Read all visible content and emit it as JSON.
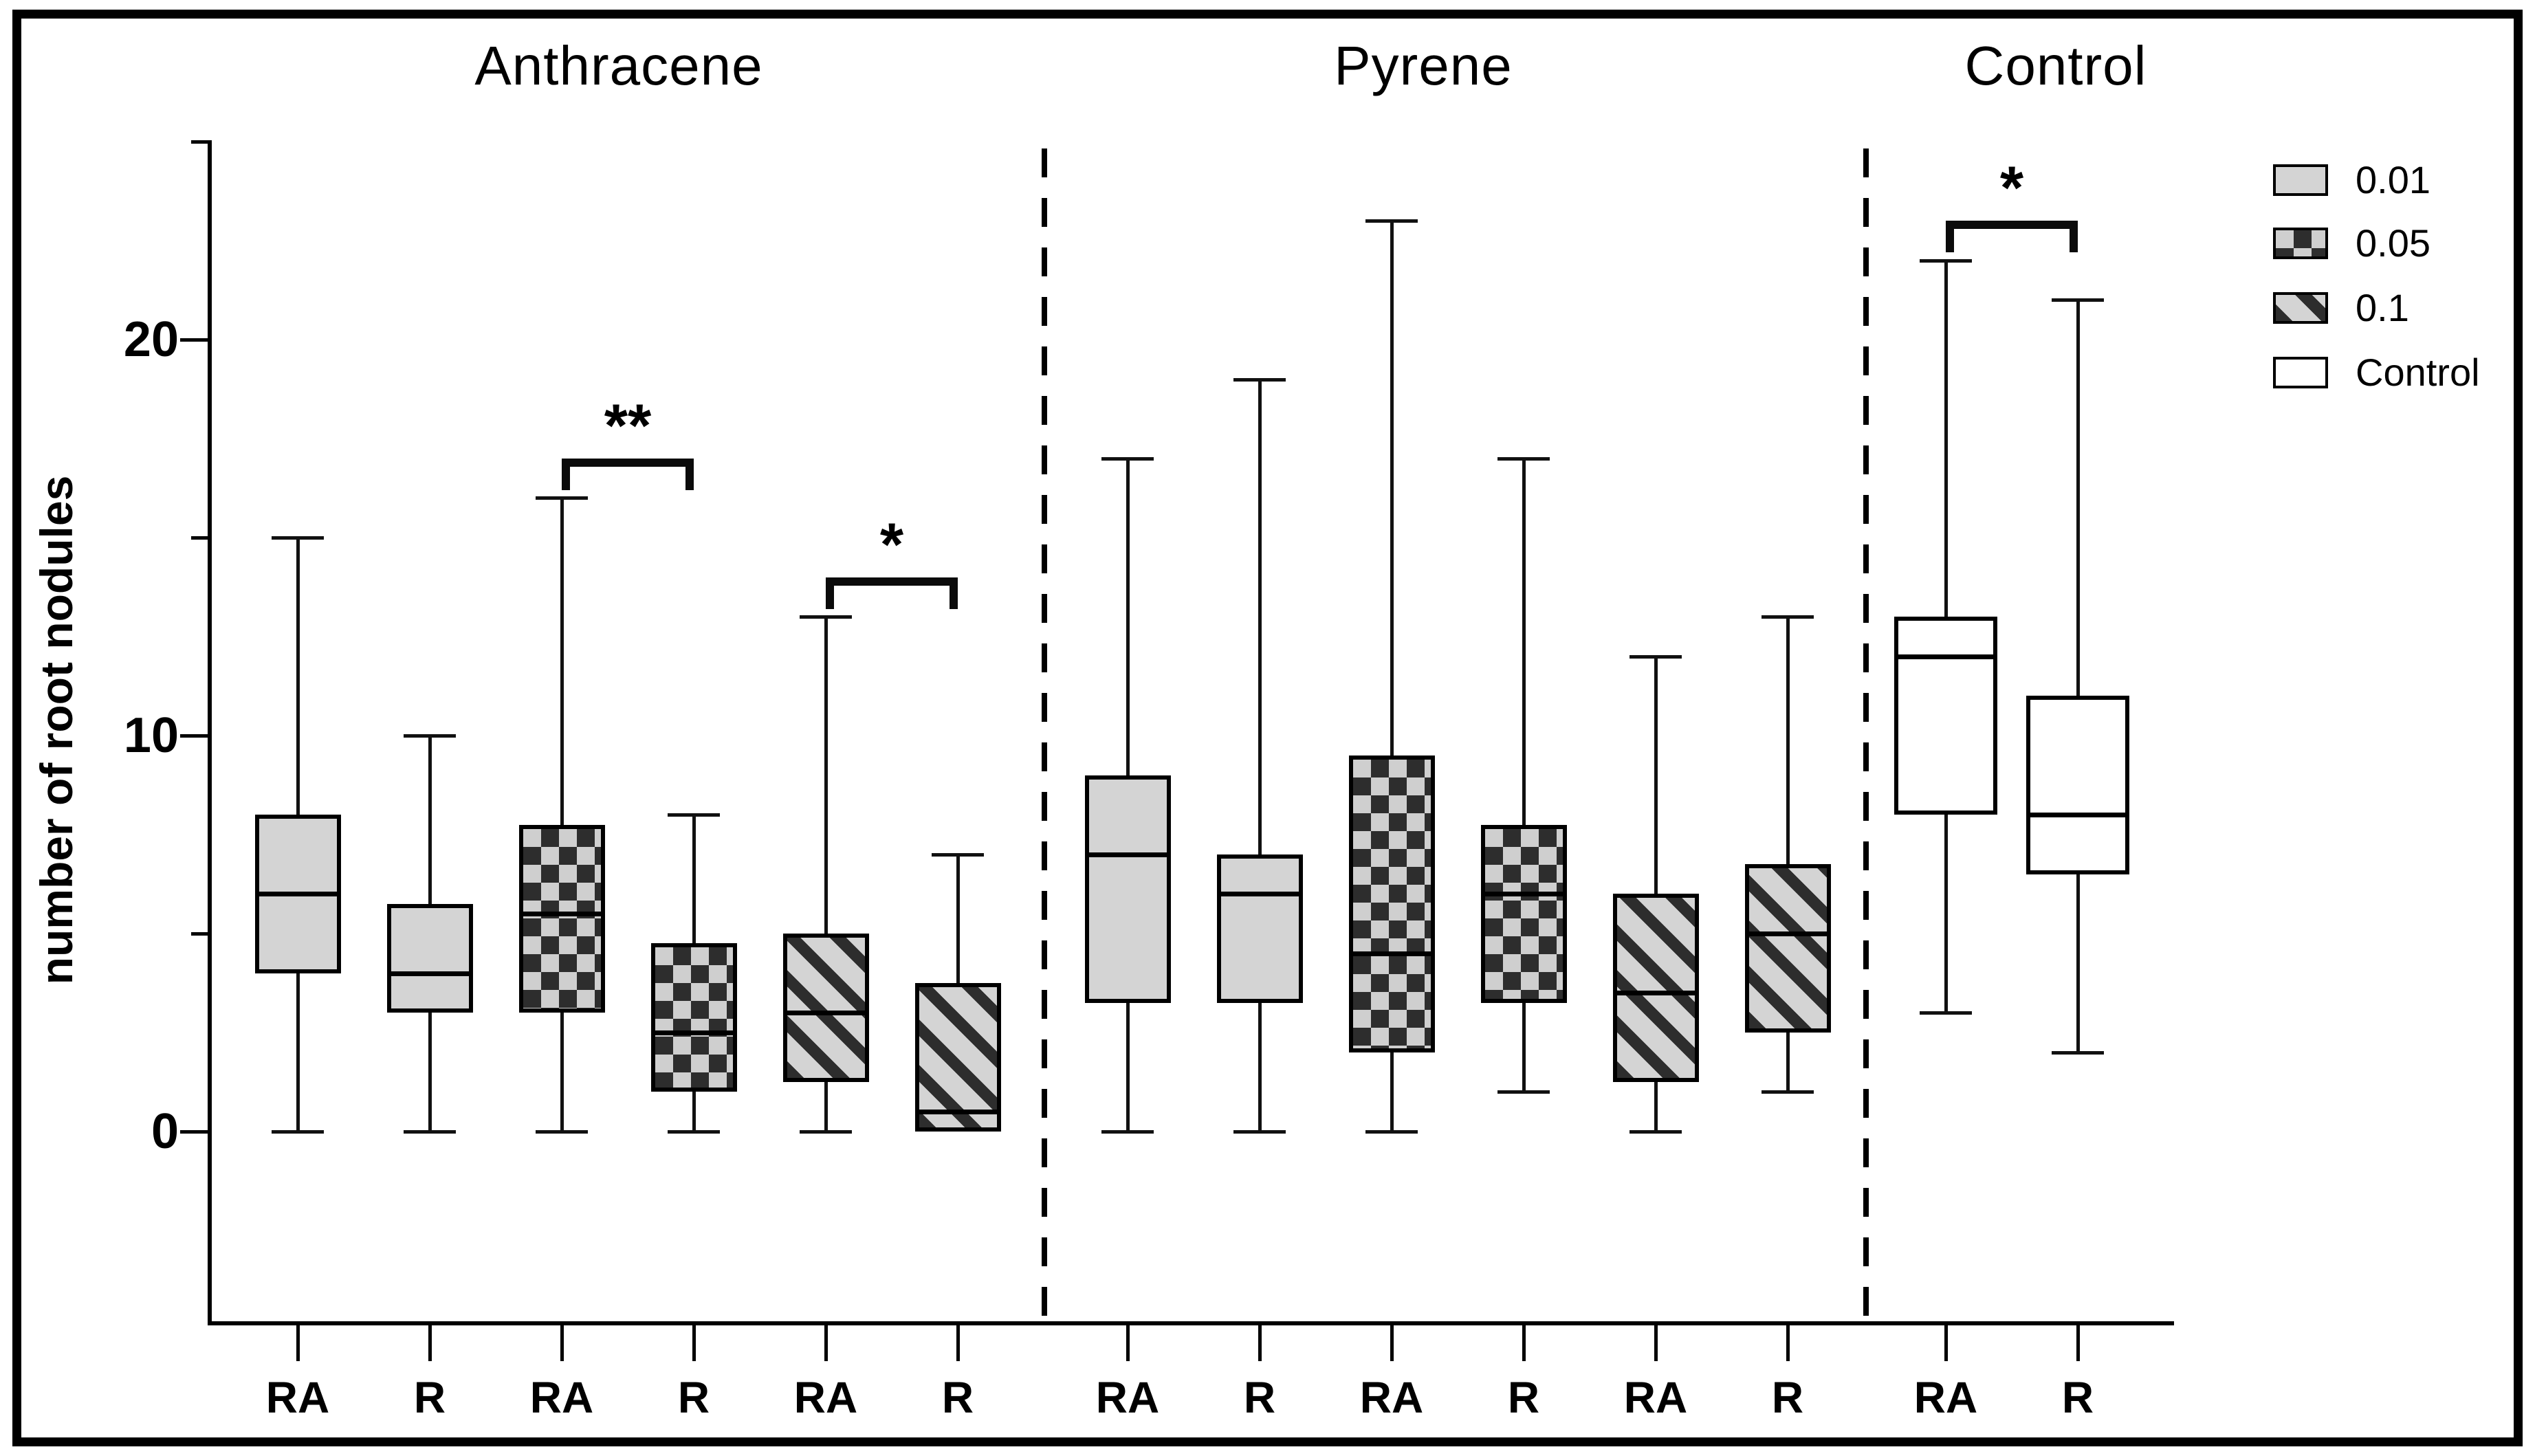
{
  "figure": {
    "ylabel": "number of root nodules"
  },
  "chart_data": {
    "type": "box",
    "title": "",
    "ylabel": "number of root nodules",
    "ylim": [
      0,
      25
    ],
    "grid": false,
    "legend_position": "top-right",
    "groups": [
      {
        "label": "Anthracene"
      },
      {
        "label": "Pyrene"
      },
      {
        "label": "Control"
      }
    ],
    "y_ticks_major": [
      {
        "value": 20,
        "label": "20"
      },
      {
        "value": 10,
        "label": "10"
      },
      {
        "value": 0,
        "label": "0"
      }
    ],
    "y_ticks_minor": [
      25,
      15,
      5
    ],
    "legend": [
      {
        "label": "0.01",
        "pattern": "gray"
      },
      {
        "label": "0.05",
        "pattern": "checker"
      },
      {
        "label": "0.1",
        "pattern": "stripe"
      },
      {
        "label": "Control",
        "pattern": "white"
      }
    ],
    "boxes": [
      {
        "group": "Anthracene",
        "concentration": "0.01",
        "treatment": "RA",
        "pattern": "gray",
        "min": 0,
        "q1": 4,
        "median": 6,
        "q3": 8,
        "max": 15
      },
      {
        "group": "Anthracene",
        "concentration": "0.01",
        "treatment": "R",
        "pattern": "gray",
        "min": 0,
        "q1": 3,
        "median": 4,
        "q3": 5.75,
        "max": 10
      },
      {
        "group": "Anthracene",
        "concentration": "0.05",
        "treatment": "RA",
        "pattern": "checker",
        "min": 0,
        "q1": 3,
        "median": 5.5,
        "q3": 7.75,
        "max": 16
      },
      {
        "group": "Anthracene",
        "concentration": "0.05",
        "treatment": "R",
        "pattern": "checker",
        "min": 0,
        "q1": 1,
        "median": 2.5,
        "q3": 4.75,
        "max": 8
      },
      {
        "group": "Anthracene",
        "concentration": "0.1",
        "treatment": "RA",
        "pattern": "stripe",
        "min": 0,
        "q1": 1.25,
        "median": 3,
        "q3": 5,
        "max": 13
      },
      {
        "group": "Anthracene",
        "concentration": "0.1",
        "treatment": "R",
        "pattern": "stripe",
        "min": 0,
        "q1": 0,
        "median": 0.5,
        "q3": 3.75,
        "max": 7
      },
      {
        "group": "Pyrene",
        "concentration": "0.01",
        "treatment": "RA",
        "pattern": "gray",
        "min": 0,
        "q1": 3.25,
        "median": 7,
        "q3": 9,
        "max": 17
      },
      {
        "group": "Pyrene",
        "concentration": "0.01",
        "treatment": "R",
        "pattern": "gray",
        "min": 0,
        "q1": 3.25,
        "median": 6,
        "q3": 7,
        "max": 19
      },
      {
        "group": "Pyrene",
        "concentration": "0.05",
        "treatment": "RA",
        "pattern": "checker",
        "min": 0,
        "q1": 2,
        "median": 4.5,
        "q3": 9.5,
        "max": 23
      },
      {
        "group": "Pyrene",
        "concentration": "0.05",
        "treatment": "R",
        "pattern": "checker",
        "min": 1,
        "q1": 3.25,
        "median": 6,
        "q3": 7.75,
        "max": 17
      },
      {
        "group": "Pyrene",
        "concentration": "0.1",
        "treatment": "RA",
        "pattern": "stripe",
        "min": 0,
        "q1": 1.25,
        "median": 3.5,
        "q3": 6,
        "max": 12
      },
      {
        "group": "Pyrene",
        "concentration": "0.1",
        "treatment": "R",
        "pattern": "stripe",
        "min": 1,
        "q1": 2.5,
        "median": 5,
        "q3": 6.75,
        "max": 13
      },
      {
        "group": "Control",
        "concentration": "Control",
        "treatment": "RA",
        "pattern": "white",
        "min": 3,
        "q1": 8,
        "median": 12,
        "q3": 13,
        "max": 22
      },
      {
        "group": "Control",
        "concentration": "Control",
        "treatment": "R",
        "pattern": "white",
        "min": 2,
        "q1": 6.5,
        "median": 8,
        "q3": 11,
        "max": 21
      }
    ],
    "significance": [
      {
        "label": "**",
        "between": [
          "Anthracene 0.05 RA",
          "Anthracene 0.05 R"
        ],
        "box_a": 2,
        "box_b": 3,
        "bar_value": 17
      },
      {
        "label": "*",
        "between": [
          "Anthracene 0.1 RA",
          "Anthracene 0.1 R"
        ],
        "box_a": 4,
        "box_b": 5,
        "bar_value": 14
      },
      {
        "label": "*",
        "between": [
          "Control RA",
          "Control R"
        ],
        "box_a": 12,
        "box_b": 13,
        "bar_value": 23
      }
    ]
  }
}
